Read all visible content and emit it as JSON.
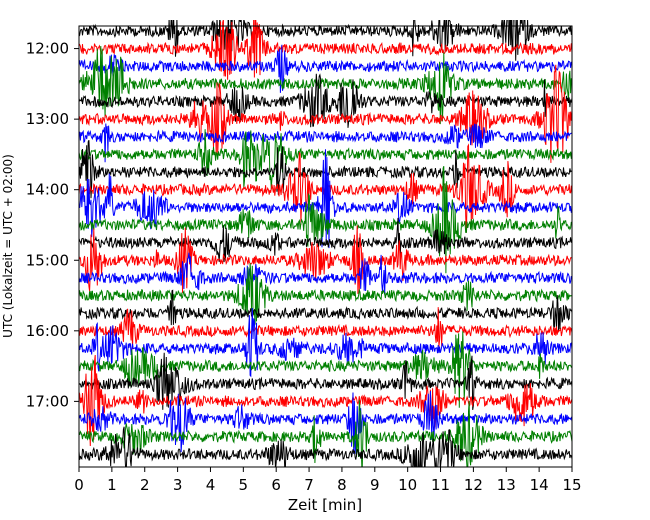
{
  "chart_data": {
    "type": "line",
    "subtype": "helicorder",
    "xlabel": "Zeit  [min]",
    "ylabel": "UTC (Lokalzeit = UTC + 02:00)",
    "xlim": [
      0,
      15
    ],
    "x_ticks": [
      "0",
      "1",
      "2",
      "3",
      "4",
      "5",
      "6",
      "7",
      "8",
      "9",
      "10",
      "11",
      "12",
      "13",
      "14",
      "15"
    ],
    "y_ticks": [
      "12:00",
      "13:00",
      "14:00",
      "15:00",
      "16:00",
      "17:00"
    ],
    "start_time": "11:45",
    "end_time": "18:00",
    "minutes_per_line": 15,
    "line_colors": [
      "#000000",
      "#ff0000",
      "#0000ff",
      "#008000"
    ],
    "grid": false,
    "legend": "none"
  }
}
